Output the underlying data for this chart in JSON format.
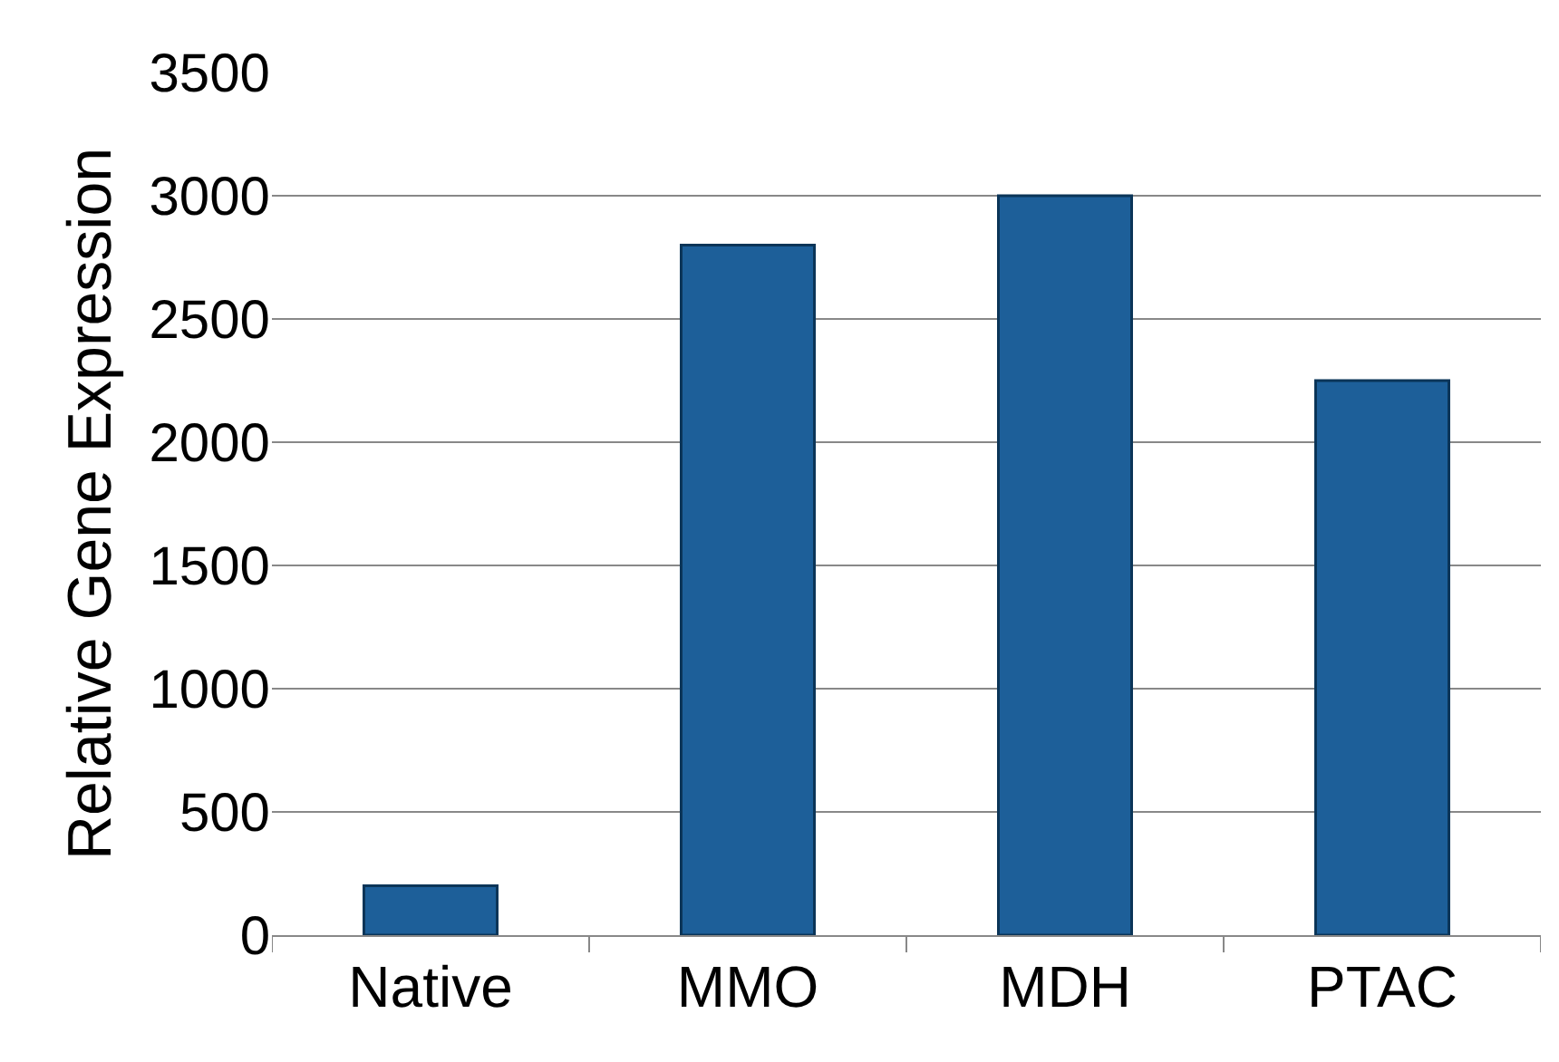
{
  "chart_data": {
    "type": "bar",
    "ylabel": "Relative Gene Expression",
    "categories": [
      "Native",
      "MMO",
      "MDH",
      "PTAC"
    ],
    "values": [
      200,
      2800,
      3000,
      2250
    ],
    "color": "#1d5f99",
    "ylim": [
      0,
      3500
    ],
    "yticks": [
      0,
      500,
      1000,
      1500,
      2000,
      2500,
      3000,
      3500
    ],
    "grid": "y",
    "legend": false
  }
}
